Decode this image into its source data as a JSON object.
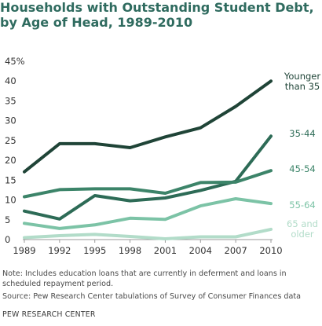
{
  "title": "Households with Outstanding Student Debt, by Age of Head, 1989-2010",
  "note": "Note: Includes education loans that are currently in deferment and loans in scheduled repayment period.",
  "source": "Source: Pew Research Center tabulations of Survey of Consumer Finances data",
  "brand": "PEW RESEARCH CENTER",
  "chart_data": {
    "type": "line",
    "x": [
      "1989",
      "1992",
      "1995",
      "1998",
      "2001",
      "2004",
      "2007",
      "2010"
    ],
    "ylim": [
      0,
      45
    ],
    "yticks": [
      0,
      5,
      10,
      15,
      20,
      25,
      30,
      35,
      40,
      45
    ],
    "ytick_labels": [
      "0",
      "5",
      "10",
      "15",
      "20",
      "25",
      "30",
      "35",
      "40",
      "45%"
    ],
    "grid": false,
    "series": [
      {
        "name": "Younger than 35",
        "label_lines": [
          "Younger",
          "than 35"
        ],
        "color": "#1f4437",
        "values": [
          17.1,
          24.2,
          24.2,
          23.2,
          25.9,
          28.2,
          33.6,
          40.0
        ]
      },
      {
        "name": "35-44",
        "label_lines": [
          "35-44"
        ],
        "color": "#2d6b56",
        "values": [
          7.2,
          5.2,
          11.1,
          9.8,
          10.5,
          12.4,
          14.7,
          26.1
        ]
      },
      {
        "name": "45-54",
        "label_lines": [
          "45-54"
        ],
        "color": "#3c8469",
        "values": [
          10.8,
          12.6,
          12.8,
          12.8,
          11.7,
          14.4,
          14.5,
          17.4
        ]
      },
      {
        "name": "55-64",
        "label_lines": [
          "55-64"
        ],
        "color": "#7cc3a6",
        "values": [
          4.1,
          2.8,
          3.7,
          5.4,
          5.1,
          8.5,
          10.3,
          9.1
        ]
      },
      {
        "name": "65 and older",
        "label_lines": [
          "65 and",
          "older"
        ],
        "color": "#b2dcc9",
        "values": [
          0.5,
          1.0,
          1.3,
          0.8,
          0.2,
          0.7,
          0.7,
          2.6
        ]
      }
    ]
  }
}
